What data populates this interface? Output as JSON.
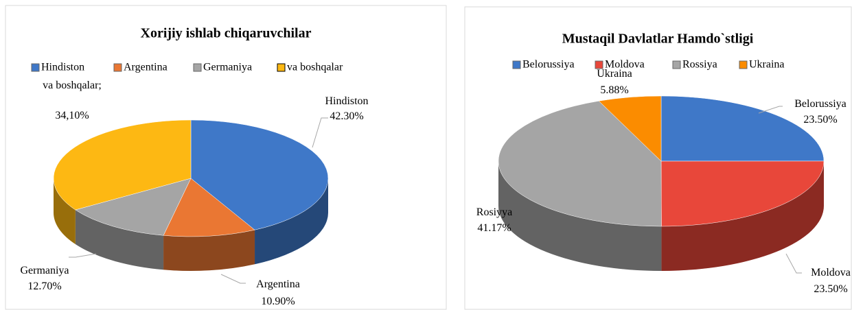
{
  "chart_data": [
    {
      "type": "pie3d",
      "title": "Xorijiy ishlab chiqaruvchilar",
      "categories": [
        "Hindiston",
        "Argentina",
        "Germaniya",
        "va boshqalar"
      ],
      "values": [
        42.3,
        10.9,
        12.7,
        34.1
      ],
      "value_labels": [
        "42.30%",
        "10.90%",
        "12.70%",
        "34,10%"
      ],
      "label_names": [
        "Hindiston",
        "Argentina",
        "Germaniya",
        "va boshqalar;"
      ],
      "colors": [
        "#3f78c8",
        "#ea7733",
        "#a5a5a5",
        "#fdb813"
      ]
    },
    {
      "type": "pie3d",
      "title": "Mustaqil Davlatlar Hamdo`stligi",
      "categories": [
        "Belorussiya",
        "Moldova",
        "Rossiya",
        "Ukraina"
      ],
      "values": [
        23.5,
        23.5,
        41.17,
        5.88
      ],
      "value_labels": [
        "23.50%",
        "23.50%",
        "41.17%",
        "5.88%"
      ],
      "label_names": [
        "Belorussiya",
        "Moldova",
        "Rosiyya",
        "Ukraina"
      ],
      "colors": [
        "#3f78c8",
        "#e8473a",
        "#a5a5a5",
        "#fb8c00"
      ]
    }
  ]
}
